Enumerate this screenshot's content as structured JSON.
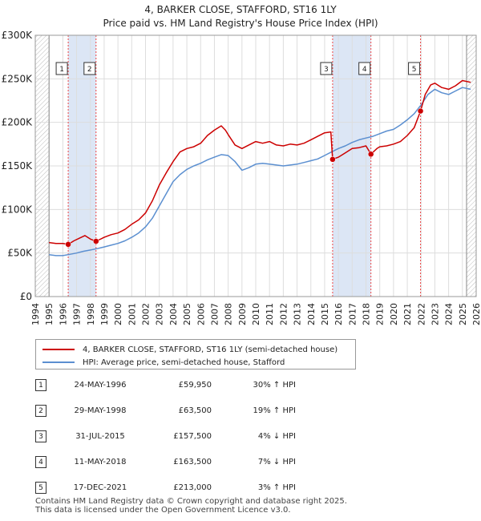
{
  "title_line1": "4, BARKER CLOSE, STAFFORD, ST16 1LY",
  "title_line2": "Price paid vs. HM Land Registry's House Price Index (HPI)",
  "colors": {
    "red": "#cc0000",
    "blue": "#5b8fd0",
    "shade": "#dce6f5",
    "grid": "#dddddd",
    "dashed": "#ee4444"
  },
  "chart_data": {
    "type": "line",
    "title": "4, BARKER CLOSE, STAFFORD, ST16 1LY — Price paid vs. HM Land Registry's House Price Index (HPI)",
    "xlim": [
      1994,
      2026
    ],
    "ylim": [
      0,
      300000
    ],
    "y_ticks": [
      {
        "value": 0,
        "label": "£0"
      },
      {
        "value": 50000,
        "label": "£50K"
      },
      {
        "value": 100000,
        "label": "£100K"
      },
      {
        "value": 150000,
        "label": "£150K"
      },
      {
        "value": 200000,
        "label": "£200K"
      },
      {
        "value": 250000,
        "label": "£250K"
      },
      {
        "value": 300000,
        "label": "£300K"
      }
    ],
    "x_ticks": [
      "1994",
      "1995",
      "1996",
      "1997",
      "1998",
      "1999",
      "2000",
      "2001",
      "2002",
      "2003",
      "2004",
      "2005",
      "2006",
      "2007",
      "2008",
      "2009",
      "2010",
      "2011",
      "2012",
      "2013",
      "2014",
      "2015",
      "2016",
      "2017",
      "2018",
      "2019",
      "2020",
      "2021",
      "2022",
      "2023",
      "2024",
      "2025",
      "2026"
    ],
    "data_start": 1995.0,
    "data_end": 2025.6,
    "shaded_regions": [
      [
        1996.39,
        1998.41
      ],
      [
        2015.58,
        2018.36
      ]
    ],
    "hatched_region": [
      2025.3,
      2026
    ],
    "series": [
      {
        "name": "4, BARKER CLOSE, STAFFORD, ST16 1LY (semi-detached house)",
        "color_key": "red",
        "points": [
          [
            1995.0,
            62000
          ],
          [
            1995.5,
            61000
          ],
          [
            1996.0,
            61000
          ],
          [
            1996.39,
            59950
          ],
          [
            1996.8,
            64000
          ],
          [
            1997.2,
            67000
          ],
          [
            1997.6,
            70000
          ],
          [
            1998.0,
            66000
          ],
          [
            1998.41,
            63500
          ],
          [
            1999.0,
            68000
          ],
          [
            1999.5,
            71000
          ],
          [
            2000.0,
            73000
          ],
          [
            2000.5,
            77000
          ],
          [
            2001.0,
            83000
          ],
          [
            2001.5,
            88000
          ],
          [
            2002.0,
            96000
          ],
          [
            2002.5,
            110000
          ],
          [
            2003.0,
            128000
          ],
          [
            2003.5,
            142000
          ],
          [
            2004.0,
            155000
          ],
          [
            2004.5,
            166000
          ],
          [
            2005.0,
            170000
          ],
          [
            2005.5,
            172000
          ],
          [
            2006.0,
            176000
          ],
          [
            2006.5,
            185000
          ],
          [
            2007.0,
            191000
          ],
          [
            2007.5,
            196000
          ],
          [
            2007.8,
            191000
          ],
          [
            2008.0,
            186000
          ],
          [
            2008.5,
            174000
          ],
          [
            2009.0,
            170000
          ],
          [
            2009.5,
            174000
          ],
          [
            2010.0,
            178000
          ],
          [
            2010.5,
            176000
          ],
          [
            2011.0,
            178000
          ],
          [
            2011.5,
            174000
          ],
          [
            2012.0,
            173000
          ],
          [
            2012.5,
            175000
          ],
          [
            2013.0,
            174000
          ],
          [
            2013.5,
            176000
          ],
          [
            2014.0,
            180000
          ],
          [
            2014.5,
            184000
          ],
          [
            2015.0,
            188000
          ],
          [
            2015.45,
            189000
          ],
          [
            2015.58,
            157500
          ],
          [
            2016.0,
            160000
          ],
          [
            2016.5,
            165000
          ],
          [
            2017.0,
            170000
          ],
          [
            2017.5,
            171000
          ],
          [
            2018.0,
            173000
          ],
          [
            2018.36,
            163500
          ],
          [
            2018.8,
            170000
          ],
          [
            2019.0,
            172000
          ],
          [
            2019.5,
            173000
          ],
          [
            2020.0,
            175000
          ],
          [
            2020.5,
            178000
          ],
          [
            2021.0,
            185000
          ],
          [
            2021.5,
            194000
          ],
          [
            2021.96,
            213000
          ],
          [
            2022.3,
            232000
          ],
          [
            2022.7,
            243000
          ],
          [
            2023.0,
            245000
          ],
          [
            2023.5,
            240000
          ],
          [
            2024.0,
            238000
          ],
          [
            2024.5,
            242000
          ],
          [
            2025.0,
            248000
          ],
          [
            2025.6,
            246000
          ]
        ]
      },
      {
        "name": "HPI: Average price, semi-detached house, Stafford",
        "color_key": "blue",
        "points": [
          [
            1995.0,
            48000
          ],
          [
            1995.5,
            47000
          ],
          [
            1996.0,
            47000
          ],
          [
            1996.5,
            48500
          ],
          [
            1997.0,
            50000
          ],
          [
            1997.5,
            52000
          ],
          [
            1998.0,
            53500
          ],
          [
            1998.5,
            55000
          ],
          [
            1999.0,
            57000
          ],
          [
            1999.5,
            59000
          ],
          [
            2000.0,
            61000
          ],
          [
            2000.5,
            64000
          ],
          [
            2001.0,
            68000
          ],
          [
            2001.5,
            73000
          ],
          [
            2002.0,
            80000
          ],
          [
            2002.5,
            90000
          ],
          [
            2003.0,
            104000
          ],
          [
            2003.5,
            118000
          ],
          [
            2004.0,
            132000
          ],
          [
            2004.5,
            140000
          ],
          [
            2005.0,
            146000
          ],
          [
            2005.5,
            150000
          ],
          [
            2006.0,
            153000
          ],
          [
            2006.5,
            157000
          ],
          [
            2007.0,
            160000
          ],
          [
            2007.5,
            163000
          ],
          [
            2008.0,
            162000
          ],
          [
            2008.5,
            155000
          ],
          [
            2009.0,
            145000
          ],
          [
            2009.5,
            148000
          ],
          [
            2010.0,
            152000
          ],
          [
            2010.5,
            153000
          ],
          [
            2011.0,
            152000
          ],
          [
            2011.5,
            151000
          ],
          [
            2012.0,
            150000
          ],
          [
            2012.5,
            151000
          ],
          [
            2013.0,
            152000
          ],
          [
            2013.5,
            154000
          ],
          [
            2014.0,
            156000
          ],
          [
            2014.5,
            158000
          ],
          [
            2015.0,
            162000
          ],
          [
            2015.5,
            166000
          ],
          [
            2016.0,
            170000
          ],
          [
            2016.5,
            173000
          ],
          [
            2017.0,
            177000
          ],
          [
            2017.5,
            180000
          ],
          [
            2018.0,
            182000
          ],
          [
            2018.5,
            184000
          ],
          [
            2019.0,
            187000
          ],
          [
            2019.5,
            190000
          ],
          [
            2020.0,
            192000
          ],
          [
            2020.5,
            197000
          ],
          [
            2021.0,
            203000
          ],
          [
            2021.5,
            210000
          ],
          [
            2022.0,
            220000
          ],
          [
            2022.5,
            232000
          ],
          [
            2023.0,
            238000
          ],
          [
            2023.5,
            234000
          ],
          [
            2024.0,
            232000
          ],
          [
            2024.5,
            236000
          ],
          [
            2025.0,
            240000
          ],
          [
            2025.6,
            238000
          ]
        ]
      }
    ],
    "markers": [
      {
        "label": "1",
        "x": 1996.39,
        "y": 59950
      },
      {
        "label": "2",
        "x": 1998.41,
        "y": 63500
      },
      {
        "label": "3",
        "x": 2015.58,
        "y": 157500
      },
      {
        "label": "4",
        "x": 2018.36,
        "y": 163500
      },
      {
        "label": "5",
        "x": 2021.96,
        "y": 213000
      }
    ]
  },
  "legend": {
    "red_label": "4, BARKER CLOSE, STAFFORD, ST16 1LY (semi-detached house)",
    "blue_label": "HPI: Average price, semi-detached house, Stafford"
  },
  "transactions": [
    {
      "num": "1",
      "date": "24-MAY-1996",
      "price": "£59,950",
      "hpi": "30% ↑ HPI"
    },
    {
      "num": "2",
      "date": "29-MAY-1998",
      "price": "£63,500",
      "hpi": "19% ↑ HPI"
    },
    {
      "num": "3",
      "date": "31-JUL-2015",
      "price": "£157,500",
      "hpi": "4% ↓ HPI"
    },
    {
      "num": "4",
      "date": "11-MAY-2018",
      "price": "£163,500",
      "hpi": "7% ↓ HPI"
    },
    {
      "num": "5",
      "date": "17-DEC-2021",
      "price": "£213,000",
      "hpi": "3% ↑ HPI"
    }
  ],
  "footer_line1": "Contains HM Land Registry data © Crown copyright and database right 2025.",
  "footer_line2": "This data is licensed under the Open Government Licence v3.0."
}
